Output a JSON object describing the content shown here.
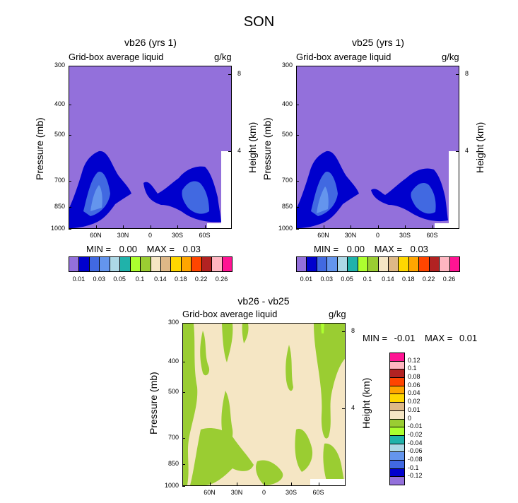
{
  "figure_title": "SON",
  "colors": {
    "frame": "#000000",
    "c_0_01": "#9370DB",
    "c_0_02": "#0000CD",
    "c_0_03": "#4169E1",
    "c_0_04": "#6495ED"
  },
  "chart_data": [
    {
      "type": "heatmap",
      "title": "vb26 (yrs 1)",
      "left_subtitle": "Grid-box average liquid",
      "units": "g/kg",
      "ylabel": "Pressure (mb)",
      "ylabel_right": "Height (km)",
      "x_ticks": [
        "60N",
        "30N",
        "0",
        "30S",
        "60S"
      ],
      "x_values": [
        60,
        30,
        0,
        -30,
        -60
      ],
      "y_ticks": [
        "300",
        "400",
        "500",
        "700",
        "850",
        "1000"
      ],
      "y_values": [
        300,
        400,
        500,
        700,
        850,
        1000
      ],
      "y_right_ticks": [
        "8",
        "4"
      ],
      "y_right_values": [
        8,
        4
      ],
      "stats": {
        "min_label": "MIN =",
        "min": "0.00",
        "max_label": "MAX =",
        "max": "0.03"
      },
      "colorbar": {
        "colors": [
          "#9370DB",
          "#0000CD",
          "#4169E1",
          "#6495ED",
          "#ADD8E6",
          "#20B2AA",
          "#ADFF2F",
          "#9ACD32",
          "#F5E6C4",
          "#DEB887",
          "#FFD700",
          "#FFA500",
          "#FF4500",
          "#B22222",
          "#FFB6C1",
          "#FF1493"
        ],
        "labels": [
          "0.01",
          "0.03",
          "0.05",
          "0.1",
          "0.14",
          "0.18",
          "0.22",
          "0.26"
        ]
      }
    },
    {
      "type": "heatmap",
      "title": "vb25 (yrs 1)",
      "left_subtitle": "Grid-box average liquid",
      "units": "g/kg",
      "ylabel": "Pressure (mb)",
      "ylabel_right": "Height (km)",
      "x_ticks": [
        "60N",
        "30N",
        "0",
        "30S",
        "60S"
      ],
      "x_values": [
        60,
        30,
        0,
        -30,
        -60
      ],
      "y_ticks": [
        "300",
        "400",
        "500",
        "700",
        "850",
        "1000"
      ],
      "y_values": [
        300,
        400,
        500,
        700,
        850,
        1000
      ],
      "y_right_ticks": [
        "8",
        "4"
      ],
      "y_right_values": [
        8,
        4
      ],
      "stats": {
        "min_label": "MIN =",
        "min": "0.00",
        "max_label": "MAX =",
        "max": "0.03"
      },
      "colorbar": {
        "colors": [
          "#9370DB",
          "#0000CD",
          "#4169E1",
          "#6495ED",
          "#ADD8E6",
          "#20B2AA",
          "#ADFF2F",
          "#9ACD32",
          "#F5E6C4",
          "#DEB887",
          "#FFD700",
          "#FFA500",
          "#FF4500",
          "#B22222",
          "#FFB6C1",
          "#FF1493"
        ],
        "labels": [
          "0.01",
          "0.03",
          "0.05",
          "0.1",
          "0.14",
          "0.18",
          "0.22",
          "0.26"
        ]
      }
    },
    {
      "type": "heatmap",
      "title": "vb26 - vb25",
      "left_subtitle": "Grid-box average liquid",
      "units": "g/kg",
      "ylabel": "Pressure (mb)",
      "ylabel_right": "Height (km)",
      "x_ticks": [
        "60N",
        "30N",
        "0",
        "30S",
        "60S"
      ],
      "x_values": [
        60,
        30,
        0,
        -30,
        -60
      ],
      "y_ticks": [
        "300",
        "400",
        "500",
        "700",
        "850",
        "1000"
      ],
      "y_values": [
        300,
        400,
        500,
        700,
        850,
        1000
      ],
      "y_right_ticks": [
        "8",
        "4"
      ],
      "y_right_values": [
        8,
        4
      ],
      "stats": {
        "min_label": "MIN =",
        "min": "-0.01",
        "max_label": "MAX =",
        "max": "0.01"
      },
      "colorbar": {
        "colors": [
          "#9370DB",
          "#0000CD",
          "#4169E1",
          "#6495ED",
          "#ADD8E6",
          "#20B2AA",
          "#ADFF2F",
          "#9ACD32",
          "#F5E6C4",
          "#DEB887",
          "#FFD700",
          "#FFA500",
          "#FF4500",
          "#B22222",
          "#FFB6C1",
          "#FF1493"
        ],
        "labels": [
          "-0.12",
          "-0.1",
          "-0.08",
          "-0.06",
          "-0.04",
          "-0.02",
          "-0.01",
          "0",
          "0.01",
          "0.02",
          "0.04",
          "0.06",
          "0.08",
          "0.1",
          "0.12"
        ]
      }
    }
  ]
}
